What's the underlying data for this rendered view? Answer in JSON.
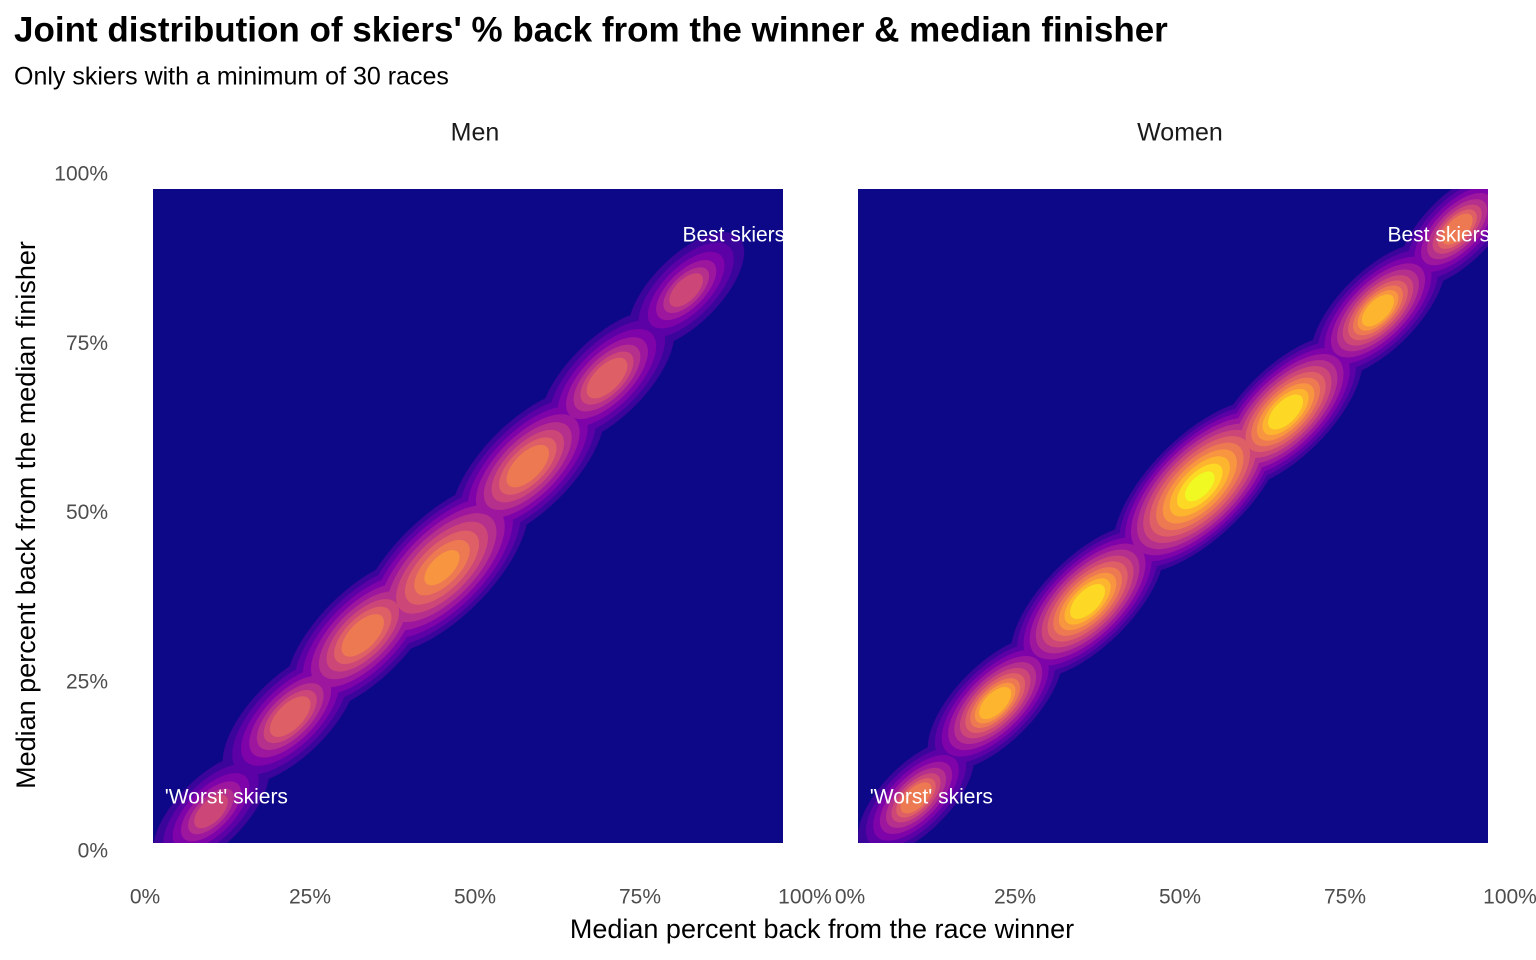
{
  "title": "Joint distribution of skiers' % back from the winner & median finisher",
  "subtitle": "Only skiers with a minimum of 30 races",
  "x_label": "Median percent back from the race winner",
  "y_label": "Median percent back from the median finisher",
  "chart_data": [
    {
      "type": "density2d",
      "title": "Men",
      "background": "#0d0887",
      "colors": [
        "#3b049a",
        "#5c01a6",
        "#7e03a8",
        "#9c179e",
        "#b52f8c",
        "#cc4778",
        "#de5f65",
        "#ed7953",
        "#f89540"
      ],
      "x": [
        10,
        22,
        33,
        45,
        58,
        70,
        82
      ],
      "y": [
        6,
        20,
        32,
        42,
        57,
        70,
        83
      ],
      "xlim": [
        0,
        100
      ],
      "ylim": [
        0,
        100
      ],
      "xticks": [
        {
          "value": 0,
          "label": "0%"
        },
        {
          "value": 25,
          "label": "25%"
        },
        {
          "value": 50,
          "label": "50%"
        },
        {
          "value": 75,
          "label": "75%"
        },
        {
          "value": 100,
          "label": "100%"
        }
      ],
      "yticks": [
        {
          "value": 0,
          "label": "0%"
        },
        {
          "value": 25,
          "label": "25%"
        },
        {
          "value": 50,
          "label": "50%"
        },
        {
          "value": 75,
          "label": "75%"
        },
        {
          "value": 100,
          "label": "100%"
        }
      ],
      "annotations": [
        {
          "text": "Best skiers",
          "x": 97,
          "y": 91
        },
        {
          "text": "'Worst' skiers",
          "x": 3,
          "y": 8
        }
      ]
    },
    {
      "type": "density2d",
      "title": "Women",
      "background": "#0d0887",
      "colors": [
        "#3b049a",
        "#5c01a6",
        "#7e03a8",
        "#9c179e",
        "#b52f8c",
        "#cc4778",
        "#de5f65",
        "#ed7953",
        "#f89540",
        "#fdb42f",
        "#fdd825",
        "#f0f921"
      ],
      "x": [
        10,
        22,
        36,
        53,
        66,
        80,
        92
      ],
      "y": [
        8,
        22,
        37,
        54,
        65,
        80,
        92
      ],
      "xlim": [
        0,
        100
      ],
      "ylim": [
        0,
        100
      ],
      "xticks": [
        {
          "value": 0,
          "label": "0%"
        },
        {
          "value": 25,
          "label": "25%"
        },
        {
          "value": 50,
          "label": "50%"
        },
        {
          "value": 75,
          "label": "75%"
        },
        {
          "value": 100,
          "label": "100%"
        }
      ],
      "annotations": [
        {
          "text": "Best skiers",
          "x": 97,
          "y": 91
        },
        {
          "text": "'Worst' skiers",
          "x": 3,
          "y": 8
        }
      ]
    }
  ]
}
